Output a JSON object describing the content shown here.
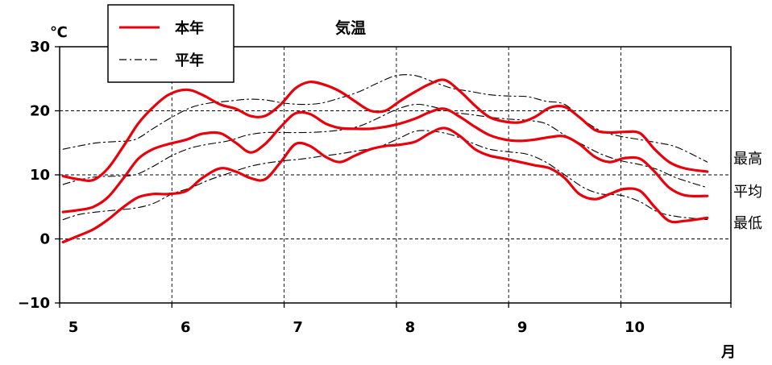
{
  "chart_data": {
    "type": "line",
    "title": "気温",
    "ylabel": "℃",
    "xlabel": "月",
    "ylim": [
      -10,
      30
    ],
    "xlim": [
      5,
      10.98
    ],
    "x_ticks": [
      5,
      6,
      7,
      8,
      9,
      10
    ],
    "y_ticks": [
      30,
      20,
      10,
      0,
      -10
    ],
    "x_tick_labels": [
      "5",
      "6",
      "7",
      "8",
      "9",
      "10"
    ],
    "y_tick_labels": [
      "30",
      "20",
      "10",
      "0",
      "−10"
    ],
    "grid": true,
    "legend_position": "top-left",
    "legend": [
      {
        "label": "本年",
        "style": "solid",
        "color": "#e8000b"
      },
      {
        "label": "平年",
        "style": "dash-dot",
        "color": "#000000"
      }
    ],
    "line_labels": [
      "最高",
      "平均",
      "最低"
    ],
    "series": [
      {
        "name": "本年",
        "line": "最高",
        "color": "#e8000b",
        "x": [
          5.03,
          5.17,
          5.3,
          5.43,
          5.57,
          5.7,
          5.83,
          5.97,
          6.13,
          6.27,
          6.43,
          6.57,
          6.7,
          6.83,
          6.97,
          7.1,
          7.23,
          7.37,
          7.5,
          7.63,
          7.77,
          7.9,
          8.03,
          8.17,
          8.3,
          8.43,
          8.57,
          8.7,
          8.83,
          8.97,
          9.1,
          9.23,
          9.37,
          9.5,
          9.63,
          9.77,
          9.9,
          10.03,
          10.17,
          10.3,
          10.43,
          10.57,
          10.77
        ],
        "values": [
          9.8,
          9.3,
          9.2,
          11.0,
          14.5,
          18.0,
          20.5,
          22.5,
          23.3,
          22.5,
          21.0,
          20.3,
          19.2,
          19.2,
          21.0,
          23.5,
          24.5,
          24.0,
          23.0,
          21.5,
          20.0,
          20.0,
          21.5,
          23.0,
          24.2,
          24.8,
          23.0,
          20.8,
          19.0,
          18.3,
          18.2,
          19.0,
          20.5,
          20.6,
          19.0,
          17.0,
          16.6,
          16.7,
          16.5,
          14.0,
          12.0,
          11.0,
          10.5
        ]
      },
      {
        "name": "本年",
        "line": "平均",
        "color": "#e8000b",
        "x": [
          5.03,
          5.17,
          5.3,
          5.43,
          5.57,
          5.7,
          5.83,
          5.97,
          6.13,
          6.27,
          6.43,
          6.57,
          6.7,
          6.83,
          6.97,
          7.1,
          7.23,
          7.37,
          7.5,
          7.63,
          7.77,
          7.9,
          8.03,
          8.17,
          8.3,
          8.43,
          8.57,
          8.7,
          8.83,
          8.97,
          9.1,
          9.23,
          9.37,
          9.5,
          9.63,
          9.77,
          9.9,
          10.03,
          10.17,
          10.3,
          10.43,
          10.57,
          10.77
        ],
        "values": [
          4.2,
          4.5,
          5.0,
          6.5,
          9.5,
          12.5,
          14.0,
          14.8,
          15.5,
          16.4,
          16.5,
          15.0,
          13.5,
          14.8,
          17.5,
          19.6,
          19.5,
          18.0,
          17.3,
          17.2,
          17.2,
          17.5,
          18.0,
          18.8,
          19.8,
          20.3,
          19.0,
          17.5,
          16.2,
          15.5,
          15.3,
          15.5,
          15.9,
          16.0,
          14.8,
          12.8,
          12.0,
          12.6,
          12.5,
          10.5,
          8.0,
          6.8,
          6.7
        ]
      },
      {
        "name": "本年",
        "line": "最低",
        "color": "#e8000b",
        "x": [
          5.03,
          5.17,
          5.3,
          5.43,
          5.57,
          5.7,
          5.83,
          5.97,
          6.13,
          6.27,
          6.43,
          6.57,
          6.7,
          6.83,
          6.97,
          7.1,
          7.23,
          7.37,
          7.5,
          7.63,
          7.77,
          7.9,
          8.03,
          8.17,
          8.3,
          8.43,
          8.57,
          8.7,
          8.83,
          8.97,
          9.1,
          9.23,
          9.37,
          9.5,
          9.63,
          9.77,
          9.9,
          10.03,
          10.17,
          10.3,
          10.43,
          10.57,
          10.77
        ],
        "values": [
          -0.5,
          0.5,
          1.5,
          3.0,
          5.0,
          6.5,
          7.0,
          7.0,
          7.5,
          9.5,
          11.0,
          10.5,
          9.5,
          9.3,
          12.0,
          14.8,
          14.5,
          12.8,
          12.0,
          13.0,
          14.0,
          14.5,
          14.7,
          15.2,
          16.5,
          17.3,
          16.0,
          14.0,
          13.0,
          12.5,
          12.0,
          11.5,
          11.0,
          9.5,
          7.0,
          6.2,
          7.0,
          7.8,
          7.5,
          5.0,
          2.8,
          2.8,
          3.3
        ]
      },
      {
        "name": "平年",
        "line": "最高",
        "color": "#000000",
        "x": [
          5.03,
          5.17,
          5.33,
          5.5,
          5.67,
          5.83,
          6.0,
          6.17,
          6.33,
          6.5,
          6.67,
          6.83,
          7.0,
          7.17,
          7.33,
          7.5,
          7.67,
          7.83,
          8.0,
          8.17,
          8.33,
          8.5,
          8.67,
          8.83,
          9.0,
          9.17,
          9.33,
          9.5,
          9.67,
          9.83,
          10.0,
          10.17,
          10.33,
          10.5,
          10.77
        ],
        "values": [
          14.0,
          14.5,
          15.0,
          15.2,
          15.5,
          17.2,
          19.0,
          20.5,
          21.2,
          21.5,
          21.8,
          21.7,
          21.2,
          21.0,
          21.2,
          22.0,
          23.0,
          24.3,
          25.5,
          25.5,
          24.5,
          23.5,
          23.0,
          22.5,
          22.3,
          22.2,
          21.5,
          21.0,
          18.5,
          16.8,
          16.0,
          15.5,
          15.0,
          14.3,
          12.0
        ]
      },
      {
        "name": "平年",
        "line": "平均",
        "color": "#000000",
        "x": [
          5.03,
          5.17,
          5.33,
          5.5,
          5.67,
          5.83,
          6.0,
          6.17,
          6.33,
          6.5,
          6.67,
          6.83,
          7.0,
          7.17,
          7.33,
          7.5,
          7.67,
          7.83,
          8.0,
          8.17,
          8.33,
          8.5,
          8.67,
          8.83,
          9.0,
          9.17,
          9.33,
          9.5,
          9.67,
          9.83,
          10.0,
          10.17,
          10.33,
          10.5,
          10.77
        ],
        "values": [
          8.5,
          9.2,
          9.7,
          9.8,
          10.0,
          11.3,
          13.0,
          14.2,
          14.8,
          15.3,
          16.2,
          16.6,
          16.6,
          16.6,
          16.7,
          17.0,
          17.6,
          18.8,
          20.2,
          21.0,
          20.6,
          19.8,
          19.4,
          19.0,
          18.7,
          18.5,
          18.0,
          16.2,
          14.6,
          13.2,
          12.2,
          11.6,
          10.8,
          9.5,
          8.0
        ]
      },
      {
        "name": "平年",
        "line": "最低",
        "color": "#000000",
        "x": [
          5.03,
          5.17,
          5.33,
          5.5,
          5.67,
          5.83,
          6.0,
          6.17,
          6.33,
          6.5,
          6.67,
          6.83,
          7.0,
          7.17,
          7.33,
          7.5,
          7.67,
          7.83,
          8.0,
          8.17,
          8.33,
          8.5,
          8.67,
          8.83,
          9.0,
          9.17,
          9.33,
          9.5,
          9.67,
          9.83,
          10.0,
          10.17,
          10.33,
          10.5,
          10.77
        ],
        "values": [
          3.0,
          3.8,
          4.2,
          4.5,
          4.8,
          5.5,
          7.0,
          8.0,
          9.2,
          10.2,
          11.2,
          11.8,
          12.2,
          12.5,
          12.9,
          13.3,
          13.8,
          14.3,
          15.5,
          16.8,
          16.8,
          16.2,
          15.0,
          14.0,
          13.6,
          13.2,
          12.0,
          10.0,
          8.0,
          7.0,
          6.8,
          5.8,
          4.2,
          3.5,
          3.0
        ]
      }
    ]
  }
}
